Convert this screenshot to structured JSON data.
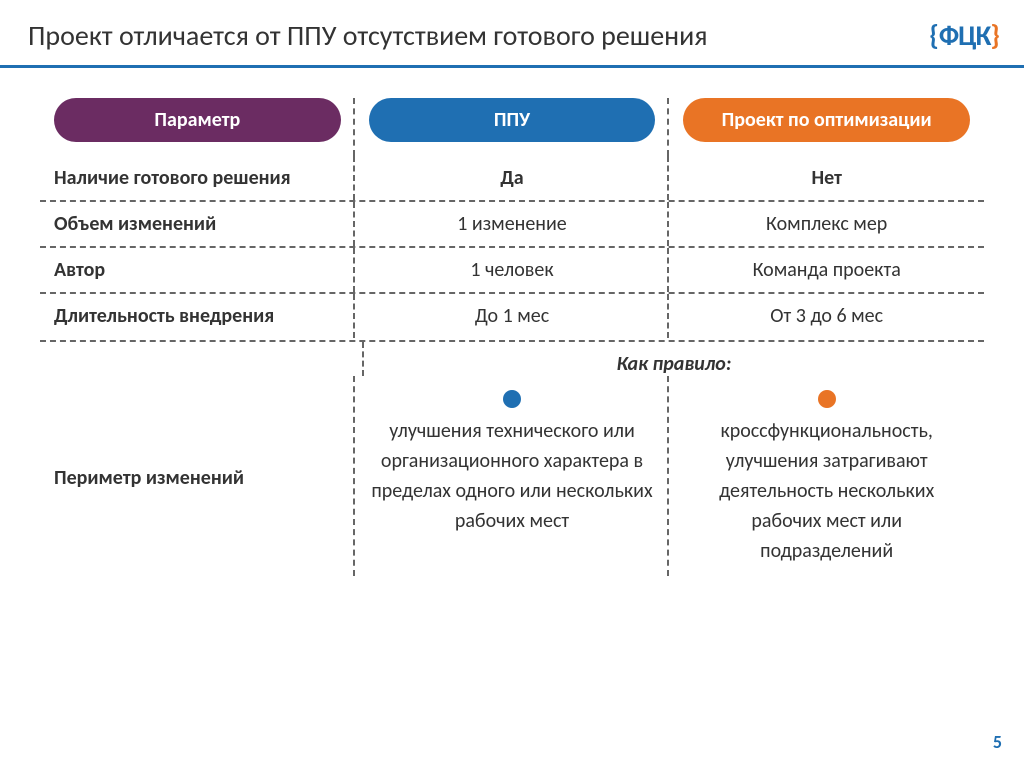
{
  "slide": {
    "title": "Проект отличается от ППУ отсутствием готового решения",
    "page_number": "5"
  },
  "colors": {
    "header_param": "#6b2c62",
    "header_ppu": "#1f6fb2",
    "header_project": "#e97425",
    "bullet_ppu": "#1f6fb2",
    "bullet_project": "#e97425",
    "rule": "#1f6fb2",
    "divider": "#666666"
  },
  "table": {
    "headers": {
      "param": "Параметр",
      "col1": "ППУ",
      "col2": "Проект по оптимизации"
    },
    "rows": [
      {
        "param": "Наличие готового решения",
        "col1": "Да",
        "col2": "Нет"
      },
      {
        "param": "Объем изменений",
        "col1": "1 изменение",
        "col2": "Комплекс мер"
      },
      {
        "param": "Автор",
        "col1": "1 человек",
        "col2": "Команда проекта"
      },
      {
        "param": "Длительность внедрения",
        "col1": "До 1 мес",
        "col2": "От 3 до 6 мес"
      }
    ],
    "perimeter": {
      "label": "Периметр изменений",
      "rule_label": "Как правило:",
      "col1": "улучшения технического или организационного характера в пределах одного или нескольких рабочих мест",
      "col2": "кроссфункциональность, улучшения затрагивают деятельность нескольких рабочих мест или подразделений"
    }
  },
  "typography": {
    "title_fontsize": 28,
    "body_fontsize": 20
  }
}
